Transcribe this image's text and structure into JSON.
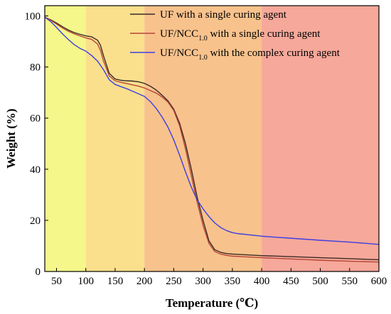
{
  "chart_data": {
    "type": "line",
    "xlabel": "Temperature (℃)",
    "ylabel": "Weight (%)",
    "xlim": [
      30,
      600
    ],
    "ylim": [
      0,
      104
    ],
    "xticks": [
      50,
      100,
      150,
      200,
      250,
      300,
      350,
      400,
      450,
      500,
      550,
      600
    ],
    "yticks": [
      0,
      20,
      40,
      60,
      80,
      100
    ],
    "grid": false,
    "legend_position": "top-right",
    "background_bands": [
      {
        "from": 30,
        "to": 100,
        "color": "#f5f78a"
      },
      {
        "from": 100,
        "to": 200,
        "color": "#fadf8c"
      },
      {
        "from": 200,
        "to": 400,
        "color": "#f8c28c"
      },
      {
        "from": 400,
        "to": 600,
        "color": "#f6a89a"
      }
    ],
    "series": [
      {
        "name": "UF with a single curing agent",
        "name_main": "UF with a single curing agent",
        "name_sub": "",
        "name_tail": "",
        "color": "#3b2a26",
        "x": [
          30,
          40,
          50,
          60,
          70,
          80,
          90,
          100,
          110,
          120,
          125,
          130,
          140,
          150,
          160,
          170,
          180,
          190,
          200,
          210,
          220,
          230,
          240,
          250,
          260,
          270,
          280,
          290,
          300,
          310,
          320,
          330,
          340,
          350,
          400,
          450,
          500,
          550,
          600
        ],
        "y": [
          99.5,
          98.5,
          97.2,
          95.8,
          94.5,
          93.5,
          92.8,
          92.2,
          91.8,
          90.5,
          88.5,
          84.5,
          77.5,
          75.3,
          74.8,
          74.6,
          74.5,
          74.2,
          73.6,
          72.5,
          71.0,
          69.0,
          66.8,
          63.5,
          58.0,
          50.0,
          40.0,
          29.0,
          20.0,
          12.0,
          8.5,
          7.5,
          7.0,
          6.8,
          6.2,
          5.8,
          5.4,
          5.0,
          4.6
        ]
      },
      {
        "name": "UF/NCC1.0 with a single curing agent",
        "name_main": "UF/NCC",
        "name_sub": "1.0",
        "name_tail": " with a single curing agent",
        "color": "#b5463a",
        "x": [
          30,
          40,
          50,
          60,
          70,
          80,
          90,
          100,
          110,
          120,
          125,
          130,
          140,
          150,
          160,
          170,
          180,
          190,
          200,
          210,
          220,
          230,
          240,
          250,
          260,
          270,
          280,
          290,
          300,
          310,
          320,
          330,
          340,
          350,
          400,
          450,
          500,
          550,
          600
        ],
        "y": [
          99.5,
          98.3,
          96.8,
          95.3,
          94.0,
          93.0,
          92.2,
          91.4,
          90.8,
          89.0,
          86.5,
          82.5,
          76.5,
          74.6,
          74.0,
          73.5,
          73.0,
          72.5,
          71.8,
          70.8,
          69.8,
          68.3,
          66.3,
          63.0,
          57.0,
          48.0,
          37.5,
          27.0,
          18.0,
          11.0,
          7.8,
          6.8,
          6.3,
          6.0,
          5.4,
          4.9,
          4.4,
          4.0,
          3.7
        ]
      },
      {
        "name": "UF/NCC1.0 with the complex curing agent",
        "name_main": "UF/NCC",
        "name_sub": "1.0",
        "name_tail": " with the complex curing agent",
        "color": "#3d3fe0",
        "x": [
          30,
          40,
          50,
          60,
          70,
          80,
          90,
          100,
          110,
          120,
          130,
          140,
          150,
          160,
          170,
          180,
          190,
          200,
          210,
          220,
          230,
          240,
          250,
          260,
          270,
          280,
          290,
          300,
          310,
          320,
          330,
          340,
          350,
          360,
          400,
          450,
          500,
          550,
          600
        ],
        "y": [
          99.5,
          97.8,
          95.5,
          93.0,
          90.8,
          88.8,
          87.3,
          86.2,
          84.5,
          82.3,
          79.0,
          75.0,
          73.2,
          72.3,
          71.5,
          70.5,
          69.5,
          68.5,
          66.5,
          63.8,
          60.5,
          56.5,
          51.5,
          45.5,
          39.0,
          33.0,
          28.0,
          24.5,
          21.5,
          19.0,
          17.2,
          16.0,
          15.2,
          14.8,
          13.8,
          13.0,
          12.2,
          11.5,
          10.6
        ]
      }
    ]
  }
}
